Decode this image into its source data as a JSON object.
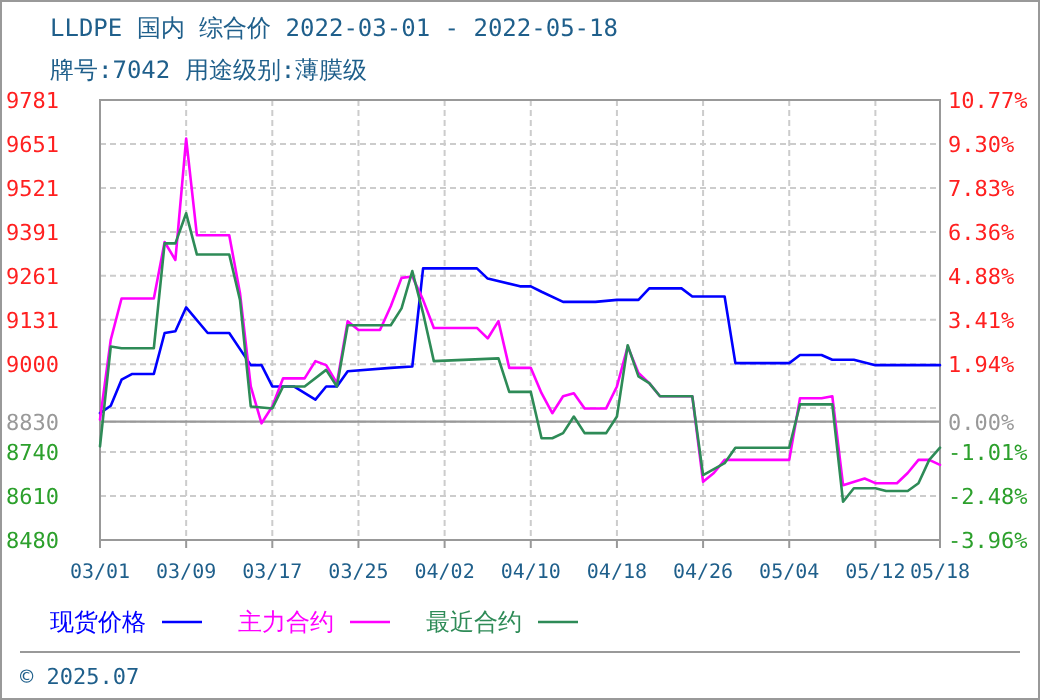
{
  "chart_data": {
    "type": "line",
    "title": "LLDPE 国内 综合价 2022-03-01 - 2022-05-18",
    "subtitle": "牌号:7042 用途级别:薄膜级",
    "annotations": [
      "© 2025.07"
    ],
    "xlim": [
      "2022-03-01",
      "2022-05-18"
    ],
    "xticks": [
      {
        "value": "2022-03-01",
        "label": "03/01"
      },
      {
        "value": "2022-03-09",
        "label": "03/09"
      },
      {
        "value": "2022-03-17",
        "label": "03/17"
      },
      {
        "value": "2022-03-25",
        "label": "03/25"
      },
      {
        "value": "2022-04-02",
        "label": "04/02"
      },
      {
        "value": "2022-04-10",
        "label": "04/10"
      },
      {
        "value": "2022-04-18",
        "label": "04/18"
      },
      {
        "value": "2022-04-26",
        "label": "04/26"
      },
      {
        "value": "2022-05-04",
        "label": "05/04"
      },
      {
        "value": "2022-05-12",
        "label": "05/12"
      },
      {
        "value": "2022-05-18",
        "label": "05/18"
      }
    ],
    "ylim": [
      8480,
      9781
    ],
    "yticks": [
      8480,
      8610,
      8740,
      8830,
      {
        "value": 8870,
        "label": null
      },
      9000,
      9131,
      9261,
      9391,
      9521,
      9651,
      9781
    ],
    "y2lim": [
      -3.96,
      10.77
    ],
    "y2ticks": [
      {
        "value": -3.96,
        "label": "-3.96%"
      },
      {
        "value": -2.48,
        "label": "-2.48%"
      },
      {
        "value": -1.01,
        "label": "-1.01%"
      },
      {
        "value": 0,
        "label": "0.00%"
      },
      {
        "value": 1.94,
        "label": "1.94%"
      },
      {
        "value": 3.41,
        "label": "3.41%"
      },
      {
        "value": 4.88,
        "label": "4.88%"
      },
      {
        "value": 6.36,
        "label": "6.36%"
      },
      {
        "value": 7.83,
        "label": "7.83%"
      },
      {
        "value": 9.3,
        "label": "9.30%"
      },
      {
        "value": 10.77,
        "label": "10.77%"
      }
    ],
    "ref_lines": [
      {
        "axis": "y",
        "value": 8830,
        "color": "#999999"
      }
    ],
    "grid": true,
    "legend": "bottom left",
    "line_style": "solid",
    "marker": "none",
    "series": [
      {
        "name": "现货价格",
        "color": "#0000ff",
        "x": [
          "2022-03-01",
          "2022-03-02",
          "2022-03-03",
          "2022-03-04",
          "2022-03-06",
          "2022-03-07",
          "2022-03-08",
          "2022-03-09",
          "2022-03-11",
          "2022-03-13",
          "2022-03-15",
          "2022-03-16",
          "2022-03-17",
          "2022-03-19",
          "2022-03-21",
          "2022-03-22",
          "2022-03-23",
          "2022-03-24",
          "2022-03-28",
          "2022-03-30",
          "2022-03-31",
          "2022-04-05",
          "2022-04-06",
          "2022-04-09",
          "2022-04-10",
          "2022-04-11",
          "2022-04-13",
          "2022-04-16",
          "2022-04-18",
          "2022-04-19",
          "2022-04-20",
          "2022-04-21",
          "2022-04-24",
          "2022-04-25",
          "2022-04-28",
          "2022-04-29",
          "2022-05-04",
          "2022-05-05",
          "2022-05-07",
          "2022-05-08",
          "2022-05-10",
          "2022-05-12",
          "2022-05-18"
        ],
        "values": [
          8855,
          8877,
          8954,
          8971,
          8971,
          9092,
          9097,
          9168,
          9092,
          9092,
          8997,
          8997,
          8934,
          8934,
          8895,
          8934,
          8934,
          8979,
          8989,
          8993,
          9283,
          9283,
          9253,
          9230,
          9230,
          9214,
          9184,
          9184,
          9190,
          9190,
          9190,
          9224,
          9224,
          9200,
          9200,
          9003,
          9003,
          9027,
          9027,
          9013,
          9013,
          8997,
          8997
        ]
      },
      {
        "name": "主力合约",
        "color": "#ff00ff",
        "x": [
          "2022-03-01",
          "2022-03-02",
          "2022-03-03",
          "2022-03-06",
          "2022-03-07",
          "2022-03-08",
          "2022-03-09",
          "2022-03-10",
          "2022-03-13",
          "2022-03-14",
          "2022-03-15",
          "2022-03-16",
          "2022-03-17",
          "2022-03-18",
          "2022-03-20",
          "2022-03-21",
          "2022-03-22",
          "2022-03-23",
          "2022-03-24",
          "2022-03-25",
          "2022-03-27",
          "2022-03-28",
          "2022-03-29",
          "2022-03-30",
          "2022-03-31",
          "2022-04-01",
          "2022-04-05",
          "2022-04-06",
          "2022-04-07",
          "2022-04-08",
          "2022-04-10",
          "2022-04-11",
          "2022-04-12",
          "2022-04-13",
          "2022-04-14",
          "2022-04-15",
          "2022-04-17",
          "2022-04-18",
          "2022-04-19",
          "2022-04-20",
          "2022-04-21",
          "2022-04-22",
          "2022-04-25",
          "2022-04-26",
          "2022-04-27",
          "2022-04-28",
          "2022-05-04",
          "2022-05-05",
          "2022-05-07",
          "2022-05-08",
          "2022-05-09",
          "2022-05-11",
          "2022-05-12",
          "2022-05-14",
          "2022-05-15",
          "2022-05-16",
          "2022-05-17",
          "2022-05-18"
        ],
        "values": [
          8836,
          9072,
          9194,
          9194,
          9361,
          9308,
          9667,
          9381,
          9381,
          9210,
          8934,
          8825,
          8875,
          8958,
          8958,
          9009,
          8997,
          8944,
          9127,
          9101,
          9101,
          9171,
          9255,
          9259,
          9190,
          9107,
          9107,
          9076,
          9127,
          8989,
          8989,
          8914,
          8855,
          8905,
          8914,
          8869,
          8869,
          8934,
          9052,
          8974,
          8944,
          8905,
          8905,
          8652,
          8678,
          8717,
          8717,
          8899,
          8899,
          8905,
          8642,
          8662,
          8648,
          8648,
          8678,
          8717,
          8717,
          8702
        ]
      },
      {
        "name": "最近合约",
        "color": "#2e8b57",
        "x": [
          "2022-03-01",
          "2022-03-02",
          "2022-03-03",
          "2022-03-06",
          "2022-03-07",
          "2022-03-08",
          "2022-03-09",
          "2022-03-10",
          "2022-03-13",
          "2022-03-14",
          "2022-03-15",
          "2022-03-17",
          "2022-03-18",
          "2022-03-20",
          "2022-03-22",
          "2022-03-23",
          "2022-03-24",
          "2022-03-28",
          "2022-03-29",
          "2022-03-30",
          "2022-03-31",
          "2022-04-01",
          "2022-04-07",
          "2022-04-08",
          "2022-04-10",
          "2022-04-11",
          "2022-04-12",
          "2022-04-13",
          "2022-04-14",
          "2022-04-15",
          "2022-04-17",
          "2022-04-18",
          "2022-04-19",
          "2022-04-20",
          "2022-04-21",
          "2022-04-22",
          "2022-04-25",
          "2022-04-26",
          "2022-04-28",
          "2022-04-29",
          "2022-05-04",
          "2022-05-05",
          "2022-05-08",
          "2022-05-09",
          "2022-05-10",
          "2022-05-12",
          "2022-05-13",
          "2022-05-15",
          "2022-05-16",
          "2022-05-17",
          "2022-05-18"
        ],
        "values": [
          8757,
          9052,
          9047,
          9047,
          9357,
          9357,
          9446,
          9324,
          9324,
          9190,
          8875,
          8869,
          8934,
          8934,
          8983,
          8934,
          9115,
          9115,
          9165,
          9275,
          9151,
          9009,
          9017,
          8918,
          8918,
          8781,
          8781,
          8796,
          8845,
          8796,
          8796,
          8845,
          9056,
          8964,
          8944,
          8905,
          8905,
          8672,
          8707,
          8753,
          8753,
          8881,
          8881,
          8593,
          8633,
          8633,
          8625,
          8625,
          8648,
          8717,
          8753
        ]
      }
    ]
  }
}
